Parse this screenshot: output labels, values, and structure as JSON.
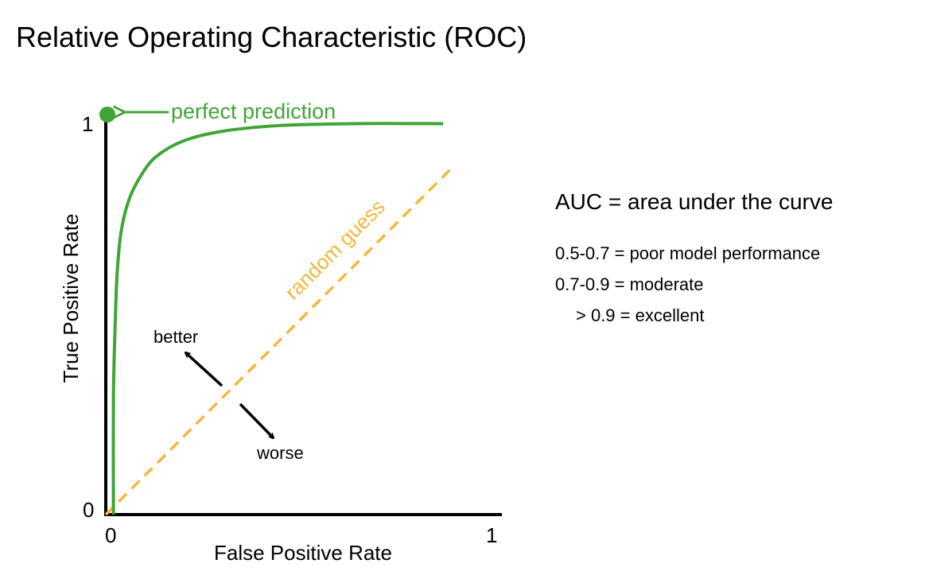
{
  "title": "Relative Operating Characteristic (ROC)",
  "colors": {
    "curve": "#3fa535",
    "random": "#f4b63d",
    "axis": "#000000"
  },
  "chart_data": {
    "type": "line",
    "xlabel": "False Positive Rate",
    "ylabel": "True Positive Rate",
    "x_ticks": [
      "0",
      "1"
    ],
    "y_ticks": [
      "0",
      "1"
    ],
    "xlim": [
      0,
      1
    ],
    "ylim": [
      0,
      1
    ],
    "grid": false,
    "series": [
      {
        "style": "solid",
        "x": [
          0.02,
          0.02,
          0.025,
          0.03,
          0.04,
          0.06,
          0.09,
          0.13,
          0.2,
          0.3,
          0.45,
          0.65,
          0.88
        ],
        "y": [
          0.0,
          0.3,
          0.5,
          0.62,
          0.72,
          0.8,
          0.86,
          0.91,
          0.95,
          0.975,
          0.99,
          0.995,
          0.995
        ]
      },
      {
        "name": "random guess",
        "style": "dashed",
        "x": [
          0.0,
          0.9
        ],
        "y": [
          0.0,
          0.88
        ]
      }
    ],
    "annotations": {
      "perfect": {
        "label": "perfect prediction",
        "x": 0,
        "y": 1
      },
      "better": "better",
      "worse": "worse"
    }
  },
  "legend": {
    "heading": "AUC = area under the curve",
    "lines": [
      "0.5-0.7 = poor model performance",
      "0.7-0.9 = moderate",
      "> 0.9 = excellent"
    ]
  }
}
